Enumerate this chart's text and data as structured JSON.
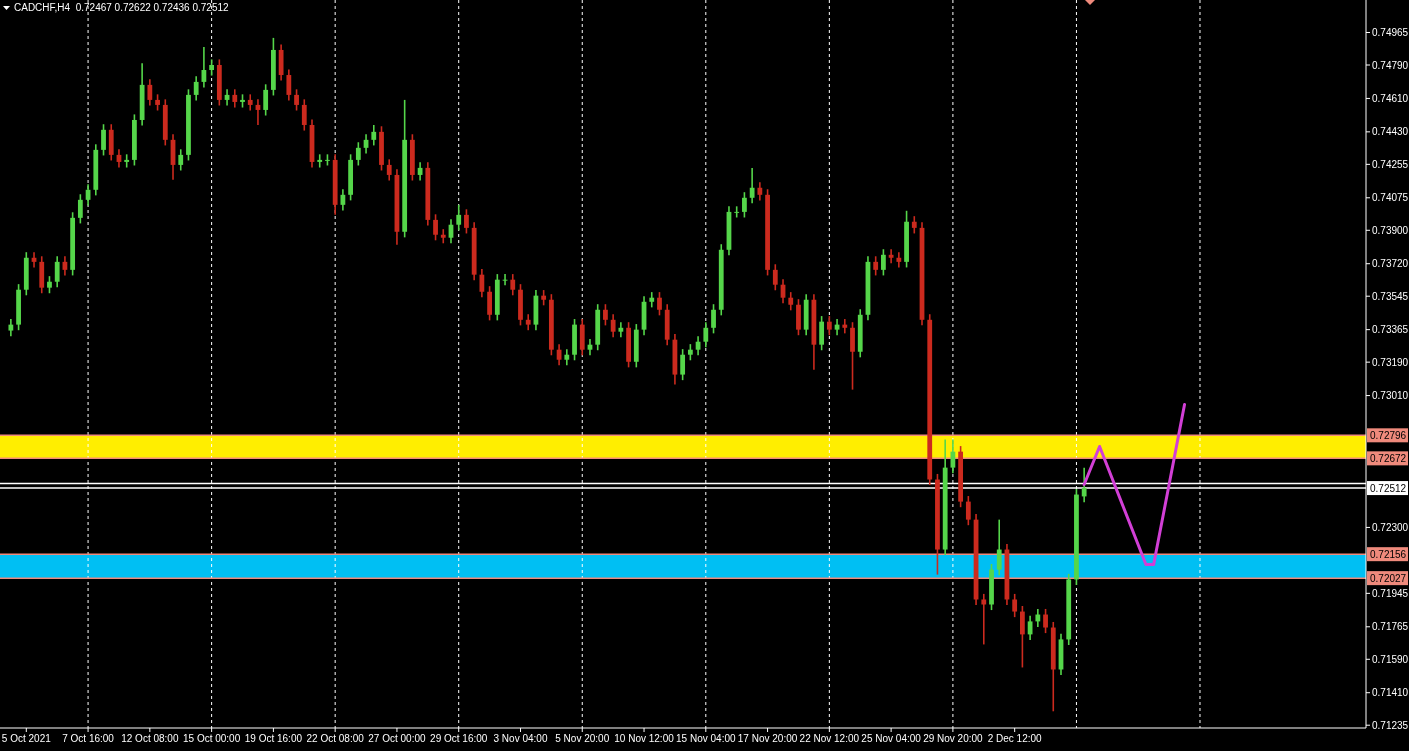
{
  "chart_data": {
    "type": "candlestick",
    "title": "CADCHF,H4  0.72467 0.72622 0.72436 0.72512",
    "categories": [
      null,
      null,
      "5 Oct 2021",
      null,
      null,
      null,
      null,
      null,
      null,
      null,
      "7 Oct 16:00",
      null,
      null,
      null,
      null,
      null,
      null,
      null,
      "12 Oct 08:00",
      null,
      null,
      null,
      null,
      null,
      null,
      null,
      "15 Oct 00:00",
      null,
      null,
      null,
      null,
      null,
      null,
      null,
      "19 Oct 16:00",
      null,
      null,
      null,
      null,
      null,
      null,
      null,
      "22 Oct 08:00",
      null,
      null,
      null,
      null,
      null,
      null,
      null,
      "27 Oct 00:00",
      null,
      null,
      null,
      null,
      null,
      null,
      null,
      "29 Oct 16:00",
      null,
      null,
      null,
      null,
      null,
      null,
      null,
      "3 Nov 04:00",
      null,
      null,
      null,
      null,
      null,
      null,
      null,
      "5 Nov 20:00",
      null,
      null,
      null,
      null,
      null,
      null,
      null,
      "10 Nov 12:00",
      null,
      null,
      null,
      null,
      null,
      null,
      null,
      "15 Nov 04:00",
      null,
      null,
      null,
      null,
      null,
      null,
      null,
      "17 Nov 20:00",
      null,
      null,
      null,
      null,
      null,
      null,
      null,
      "22 Nov 12:00",
      null,
      null,
      null,
      null,
      null,
      null,
      null,
      "25 Nov 04:00",
      null,
      null,
      null,
      null,
      null,
      null,
      null,
      "29 Nov 20:00",
      null,
      null,
      null,
      null,
      null,
      null,
      null,
      "2 Dec 12:00",
      null,
      null,
      null,
      null,
      null,
      null,
      null,
      null,
      null,
      null,
      null,
      null,
      null,
      null,
      null,
      null,
      null,
      null,
      null,
      null,
      null,
      null,
      null,
      null,
      null,
      null,
      null,
      null,
      null,
      null,
      null,
      null,
      null,
      null,
      null,
      null,
      null,
      null,
      null,
      null,
      null,
      null,
      null,
      null,
      null
    ],
    "ohlc": [
      [
        0.7336,
        0.73422,
        0.7333,
        0.73392
      ],
      [
        0.73392,
        0.7361,
        0.73362,
        0.7358
      ],
      [
        0.7358,
        0.73782,
        0.7355,
        0.73752
      ],
      [
        0.73752,
        0.73782,
        0.737,
        0.7373
      ],
      [
        0.7373,
        0.7376,
        0.73561,
        0.73591
      ],
      [
        0.73591,
        0.73653,
        0.73561,
        0.73623
      ],
      [
        0.73623,
        0.7376,
        0.73593,
        0.7373
      ],
      [
        0.7373,
        0.7376,
        0.73657,
        0.73687
      ],
      [
        0.73687,
        0.73997,
        0.73657,
        0.73967
      ],
      [
        0.73967,
        0.74094,
        0.73937,
        0.74064
      ],
      [
        0.74064,
        0.74148,
        0.74034,
        0.74118
      ],
      [
        0.74118,
        0.74363,
        0.74088,
        0.74333
      ],
      [
        0.74333,
        0.74471,
        0.74303,
        0.74441
      ],
      [
        0.74441,
        0.74471,
        0.74276,
        0.74306
      ],
      [
        0.74306,
        0.74336,
        0.74238,
        0.74268
      ],
      [
        0.74268,
        0.74309,
        0.74238,
        0.74279
      ],
      [
        0.74279,
        0.74524,
        0.74249,
        0.74494
      ],
      [
        0.74494,
        0.748,
        0.74464,
        0.74683
      ],
      [
        0.74683,
        0.74713,
        0.74572,
        0.74602
      ],
      [
        0.74602,
        0.74632,
        0.74545,
        0.74575
      ],
      [
        0.74575,
        0.74605,
        0.74357,
        0.74387
      ],
      [
        0.74387,
        0.74417,
        0.74172,
        0.74252
      ],
      [
        0.74252,
        0.74336,
        0.74222,
        0.74306
      ],
      [
        0.74306,
        0.74659,
        0.74276,
        0.74629
      ],
      [
        0.74629,
        0.74729,
        0.74599,
        0.74699
      ],
      [
        0.74699,
        0.74887,
        0.74669,
        0.74763
      ],
      [
        0.74763,
        0.7482,
        0.74733,
        0.7479
      ],
      [
        0.7479,
        0.7482,
        0.74572,
        0.74602
      ],
      [
        0.74602,
        0.74659,
        0.74572,
        0.74629
      ],
      [
        0.74629,
        0.74659,
        0.74561,
        0.74591
      ],
      [
        0.74591,
        0.74632,
        0.74561,
        0.74602
      ],
      [
        0.74602,
        0.74632,
        0.74545,
        0.74575
      ],
      [
        0.74575,
        0.74605,
        0.74467,
        0.74548
      ],
      [
        0.74548,
        0.74686,
        0.74518,
        0.74656
      ],
      [
        0.74656,
        0.74936,
        0.74626,
        0.74871
      ],
      [
        0.74871,
        0.74901,
        0.74706,
        0.74736
      ],
      [
        0.74736,
        0.74766,
        0.74599,
        0.74629
      ],
      [
        0.74629,
        0.74659,
        0.74545,
        0.74575
      ],
      [
        0.74575,
        0.74605,
        0.74437,
        0.74467
      ],
      [
        0.74467,
        0.74497,
        0.74238,
        0.74268
      ],
      [
        0.74268,
        0.74309,
        0.74238,
        0.74279
      ],
      [
        0.74279,
        0.74309,
        0.74249,
        0.74279
      ],
      [
        0.74279,
        0.74309,
        0.73983,
        0.74037
      ],
      [
        0.74037,
        0.74121,
        0.74007,
        0.74091
      ],
      [
        0.74091,
        0.74309,
        0.74061,
        0.74279
      ],
      [
        0.74279,
        0.74374,
        0.74249,
        0.74344
      ],
      [
        0.74344,
        0.74417,
        0.74314,
        0.74387
      ],
      [
        0.74387,
        0.74467,
        0.74357,
        0.7443
      ],
      [
        0.7443,
        0.7446,
        0.74222,
        0.74252
      ],
      [
        0.74252,
        0.74282,
        0.74168,
        0.74198
      ],
      [
        0.74198,
        0.74228,
        0.73822,
        0.73892
      ],
      [
        0.73892,
        0.74602,
        0.73862,
        0.74387
      ],
      [
        0.74387,
        0.74417,
        0.74168,
        0.74198
      ],
      [
        0.74198,
        0.74266,
        0.74168,
        0.74236
      ],
      [
        0.74236,
        0.74266,
        0.73926,
        0.73956
      ],
      [
        0.73956,
        0.73986,
        0.73846,
        0.73876
      ],
      [
        0.73876,
        0.73906,
        0.7383,
        0.7386
      ],
      [
        0.7386,
        0.7396,
        0.7383,
        0.7393
      ],
      [
        0.7393,
        0.74037,
        0.739,
        0.73983
      ],
      [
        0.73983,
        0.74013,
        0.73883,
        0.73913
      ],
      [
        0.73913,
        0.73943,
        0.73631,
        0.73661
      ],
      [
        0.73661,
        0.73691,
        0.73539,
        0.73569
      ],
      [
        0.73569,
        0.73599,
        0.73415,
        0.73445
      ],
      [
        0.73445,
        0.73664,
        0.73415,
        0.73634
      ],
      [
        0.73634,
        0.73664,
        0.73604,
        0.73634
      ],
      [
        0.73634,
        0.73664,
        0.7355,
        0.7358
      ],
      [
        0.7358,
        0.7361,
        0.73388,
        0.73418
      ],
      [
        0.73418,
        0.73448,
        0.73362,
        0.73392
      ],
      [
        0.73392,
        0.73578,
        0.73362,
        0.73548
      ],
      [
        0.73548,
        0.73578,
        0.73496,
        0.73526
      ],
      [
        0.73526,
        0.73556,
        0.73227,
        0.73257
      ],
      [
        0.73257,
        0.73287,
        0.73173,
        0.73203
      ],
      [
        0.73203,
        0.7326,
        0.73173,
        0.7323
      ],
      [
        0.7323,
        0.73422,
        0.732,
        0.73392
      ],
      [
        0.73392,
        0.73422,
        0.73227,
        0.73257
      ],
      [
        0.73257,
        0.73314,
        0.73227,
        0.73284
      ],
      [
        0.73284,
        0.73502,
        0.73254,
        0.73472
      ],
      [
        0.73472,
        0.73502,
        0.73388,
        0.73418
      ],
      [
        0.73418,
        0.73448,
        0.73324,
        0.73354
      ],
      [
        0.73354,
        0.73405,
        0.73324,
        0.73375
      ],
      [
        0.73375,
        0.73405,
        0.73162,
        0.73192
      ],
      [
        0.73192,
        0.73395,
        0.73162,
        0.73365
      ],
      [
        0.73365,
        0.73545,
        0.73335,
        0.73515
      ],
      [
        0.73515,
        0.73567,
        0.73485,
        0.73537
      ],
      [
        0.73537,
        0.73567,
        0.73442,
        0.73472
      ],
      [
        0.73472,
        0.73502,
        0.73281,
        0.73311
      ],
      [
        0.73311,
        0.73341,
        0.73069,
        0.73123
      ],
      [
        0.73123,
        0.7326,
        0.73093,
        0.7323
      ],
      [
        0.7323,
        0.73287,
        0.732,
        0.73257
      ],
      [
        0.73257,
        0.7333,
        0.73227,
        0.733
      ],
      [
        0.733,
        0.73405,
        0.7327,
        0.73375
      ],
      [
        0.73375,
        0.73502,
        0.73345,
        0.73472
      ],
      [
        0.73472,
        0.73825,
        0.73442,
        0.73795
      ],
      [
        0.73795,
        0.74029,
        0.73765,
        0.73999
      ],
      [
        0.73999,
        0.74029,
        0.73969,
        0.73999
      ],
      [
        0.73999,
        0.74105,
        0.73969,
        0.74075
      ],
      [
        0.74075,
        0.74236,
        0.74045,
        0.74129
      ],
      [
        0.74129,
        0.74159,
        0.74061,
        0.74091
      ],
      [
        0.74091,
        0.74121,
        0.73657,
        0.73687
      ],
      [
        0.73687,
        0.73717,
        0.73577,
        0.73607
      ],
      [
        0.73607,
        0.73637,
        0.73507,
        0.73537
      ],
      [
        0.73537,
        0.73567,
        0.73469,
        0.73499
      ],
      [
        0.73499,
        0.73529,
        0.73335,
        0.73365
      ],
      [
        0.73365,
        0.73556,
        0.73335,
        0.73526
      ],
      [
        0.73526,
        0.73556,
        0.73149,
        0.73284
      ],
      [
        0.73284,
        0.73438,
        0.73254,
        0.73408
      ],
      [
        0.73408,
        0.73438,
        0.73335,
        0.73365
      ],
      [
        0.73365,
        0.73422,
        0.73335,
        0.73392
      ],
      [
        0.73392,
        0.73422,
        0.73345,
        0.73375
      ],
      [
        0.73375,
        0.73405,
        0.73042,
        0.73246
      ],
      [
        0.73246,
        0.73475,
        0.73216,
        0.73445
      ],
      [
        0.73445,
        0.7376,
        0.73415,
        0.7373
      ],
      [
        0.7373,
        0.7376,
        0.73657,
        0.73687
      ],
      [
        0.73687,
        0.73798,
        0.73657,
        0.73768
      ],
      [
        0.73768,
        0.73798,
        0.73722,
        0.73752
      ],
      [
        0.73752,
        0.73782,
        0.737,
        0.7373
      ],
      [
        0.7373,
        0.74005,
        0.737,
        0.73946
      ],
      [
        0.73946,
        0.73976,
        0.73883,
        0.73913
      ],
      [
        0.73913,
        0.73943,
        0.73388,
        0.73418
      ],
      [
        0.73418,
        0.73448,
        0.72528,
        0.72558
      ],
      [
        0.72558,
        0.72588,
        0.72046,
        0.72181
      ],
      [
        0.72181,
        0.72773,
        0.72151,
        0.72622
      ],
      [
        0.72622,
        0.72773,
        0.72592,
        0.72708
      ],
      [
        0.72708,
        0.72738,
        0.72409,
        0.72439
      ],
      [
        0.72439,
        0.72469,
        0.72312,
        0.72342
      ],
      [
        0.72342,
        0.72372,
        0.71882,
        0.71912
      ],
      [
        0.71912,
        0.71942,
        0.7167,
        0.71885
      ],
      [
        0.71885,
        0.72103,
        0.71855,
        0.72073
      ],
      [
        0.72073,
        0.72342,
        0.72043,
        0.72181
      ],
      [
        0.72181,
        0.72211,
        0.71882,
        0.71912
      ],
      [
        0.71912,
        0.71942,
        0.71817,
        0.71847
      ],
      [
        0.71847,
        0.71877,
        0.71546,
        0.71724
      ],
      [
        0.71724,
        0.71824,
        0.71694,
        0.71794
      ],
      [
        0.71794,
        0.71861,
        0.71764,
        0.71831
      ],
      [
        0.71831,
        0.71861,
        0.71731,
        0.71761
      ],
      [
        0.71761,
        0.71791,
        0.7131,
        0.71535
      ],
      [
        0.71535,
        0.71727,
        0.71505,
        0.71697
      ],
      [
        0.71697,
        0.7205,
        0.71667,
        0.7202
      ],
      [
        0.7202,
        0.72507,
        0.7199,
        0.72477
      ],
      [
        0.72467,
        0.72622,
        0.72436,
        0.72512
      ],
      null,
      null,
      null,
      null,
      null,
      null,
      null,
      null,
      null,
      null,
      null,
      null,
      null,
      null,
      null,
      null,
      null,
      null,
      null,
      null,
      null,
      null,
      null,
      null,
      null,
      null,
      null,
      null,
      null,
      null,
      null,
      null,
      null,
      null,
      null,
      null
    ],
    "series": [
      {
        "type": "line",
        "color": "#d23fd6",
        "values": [
          null,
          null,
          null,
          null,
          null,
          null,
          null,
          null,
          null,
          null,
          null,
          null,
          null,
          null,
          null,
          null,
          null,
          null,
          null,
          null,
          null,
          null,
          null,
          null,
          null,
          null,
          null,
          null,
          null,
          null,
          null,
          null,
          null,
          null,
          null,
          null,
          null,
          null,
          null,
          null,
          null,
          null,
          null,
          null,
          null,
          null,
          null,
          null,
          null,
          null,
          null,
          null,
          null,
          null,
          null,
          null,
          null,
          null,
          null,
          null,
          null,
          null,
          null,
          null,
          null,
          null,
          null,
          null,
          null,
          null,
          null,
          null,
          null,
          null,
          null,
          null,
          null,
          null,
          null,
          null,
          null,
          null,
          null,
          null,
          null,
          null,
          null,
          null,
          null,
          null,
          null,
          null,
          null,
          null,
          null,
          null,
          null,
          null,
          null,
          null,
          null,
          null,
          null,
          null,
          null,
          null,
          null,
          null,
          null,
          null,
          null,
          null,
          null,
          null,
          null,
          null,
          null,
          null,
          null,
          null,
          null,
          null,
          null,
          null,
          null,
          null,
          null,
          null,
          null,
          null,
          null,
          null,
          null,
          null,
          null,
          null,
          null,
          null,
          null,
          0.72531,
          null,
          0.72736,
          null,
          null,
          null,
          null,
          null,
          0.721,
          0.721,
          null,
          null,
          null,
          0.72962,
          null,
          null,
          null,
          null,
          null,
          null,
          null,
          null,
          null,
          null,
          null,
          null,
          null,
          null,
          null,
          null,
          null,
          null,
          null,
          null,
          null,
          null,
          null
        ]
      }
    ],
    "ylim": [
      0.7122,
      0.7514
    ],
    "yticks": [
      0.74965,
      {
        "value": 0.7479,
        "label": "0.74790"
      },
      {
        "value": 0.7461,
        "label": "0.74610"
      },
      {
        "value": 0.7443,
        "label": "0.74430"
      },
      0.74255,
      0.74075,
      {
        "value": 0.739,
        "label": "0.73900"
      },
      {
        "value": 0.7372,
        "label": "0.73720"
      },
      0.73545,
      0.73365,
      {
        "value": 0.7319,
        "label": "0.73190"
      },
      {
        "value": 0.7301,
        "label": "0.73010"
      },
      {
        "value": 0.723,
        "label": "0.72300"
      },
      0.71945,
      0.71765,
      {
        "value": 0.7159,
        "label": "0.71590"
      },
      {
        "value": 0.7141,
        "label": "0.71410"
      },
      0.71235
    ],
    "bands": [
      {
        "axis": "y",
        "from": 0.72672,
        "to": 0.72796,
        "color": "#ffee00"
      },
      {
        "axis": "y",
        "from": 0.72027,
        "to": 0.72156,
        "color": "#00bff3"
      }
    ],
    "ref_lines": [
      {
        "axis": "y",
        "value": 0.72796,
        "label": "0.72796",
        "color": "#ef8a7c"
      },
      {
        "axis": "y",
        "value": 0.72672,
        "label": "0.72672",
        "color": "#ef8a7c"
      },
      {
        "axis": "y",
        "value": 0.72156,
        "label": "0.72156",
        "color": "#ef8a7c"
      },
      {
        "axis": "y",
        "value": 0.72027,
        "label": "0.72027",
        "color": "#ef8a7c"
      },
      {
        "axis": "y",
        "value": 0.72536,
        "color": "#ffffff"
      },
      {
        "axis": "y",
        "value": 0.72512,
        "label": "0.72512",
        "color": "#ffffff"
      }
    ],
    "grid": "x"
  }
}
